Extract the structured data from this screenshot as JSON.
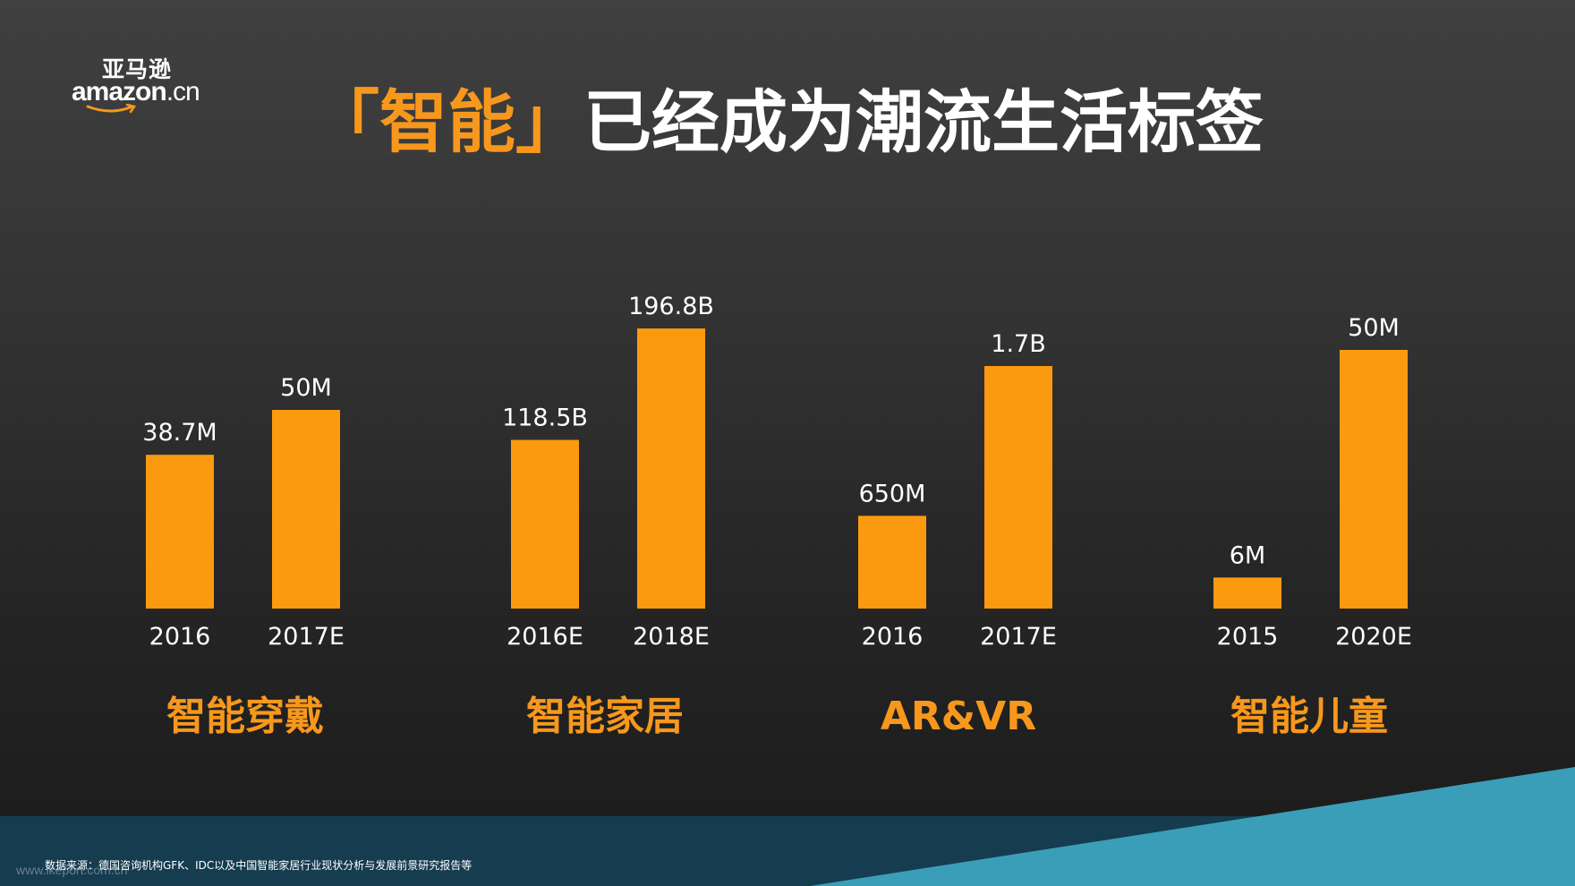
{
  "logo": {
    "cn": "亚马逊",
    "en": "amazon",
    "tld": ".cn"
  },
  "title": {
    "highlight": "「智能」",
    "rest": "已经成为潮流生活标签"
  },
  "colors": {
    "bar": "#fc9a0f",
    "accent_text": "#f7981d",
    "text": "#ffffff",
    "band_dark": "#163c50",
    "band_light": "#3b9eb9"
  },
  "chart_data": {
    "type": "bar",
    "title": "「智能」已经成为潮流生活标签",
    "groups": [
      {
        "name": "智能穿戴",
        "bars": [
          {
            "x": "2016",
            "value": 38.7,
            "label": "38.7M"
          },
          {
            "x": "2017E",
            "value": 50,
            "label": "50M"
          }
        ]
      },
      {
        "name": "智能家居",
        "bars": [
          {
            "x": "2016E",
            "value": 118.5,
            "label": "118.5B"
          },
          {
            "x": "2018E",
            "value": 196.8,
            "label": "196.8B"
          }
        ]
      },
      {
        "name": "AR&VR",
        "bars": [
          {
            "x": "2016",
            "value": 650,
            "label": "650M"
          },
          {
            "x": "2017E",
            "value": 1700,
            "label": "1.7B"
          }
        ]
      },
      {
        "name": "智能儿童",
        "bars": [
          {
            "x": "2015",
            "value": 6,
            "label": "6M"
          },
          {
            "x": "2020E",
            "value": 50,
            "label": "50M"
          }
        ]
      }
    ]
  },
  "source": "数据来源：德国咨询机构GFK、IDC以及中国智能家居行业现状分析与发展前景研究报告等",
  "watermark": "www.ikeport.com.cn"
}
